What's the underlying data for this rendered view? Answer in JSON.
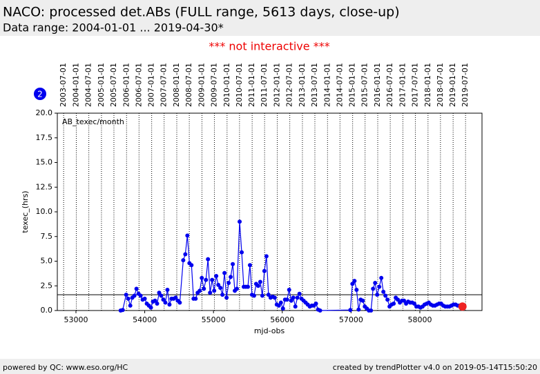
{
  "chart_data": {
    "type": "line",
    "title": "NACO: processed det.ABs (FULL range, 5613 days, close-up)",
    "subtitle": "Data range: 2004-01-01 ... 2019-04-30*",
    "notice": "*** not interactive ***",
    "badge": "2",
    "series_label": "AB_texec/month",
    "x_label": "mjd-obs",
    "y_label": "texec_(hrs)",
    "footer_left": "powered by QC: www.eso.org/HC",
    "footer_right": "created by trendPlotter v4.0 on 2019-05-14T15:50:20",
    "color": "#0000ee",
    "xlim": [
      52729,
      58904
    ],
    "ylim": [
      0,
      20
    ],
    "xticks": [
      53000,
      54000,
      55000,
      56000,
      57000,
      58000
    ],
    "yticks": [
      {
        "value": 0,
        "label": "0.0"
      },
      {
        "value": 2.5,
        "label": "2.5"
      },
      {
        "value": 5,
        "label": "5.0"
      },
      {
        "value": 7.5,
        "label": "7.5"
      },
      {
        "value": 10,
        "label": "10.0"
      },
      {
        "value": 12.5,
        "label": "12.5"
      },
      {
        "value": 15,
        "label": "15.0"
      },
      {
        "value": 17.5,
        "label": "17.5"
      },
      {
        "value": 20,
        "label": "20.0"
      }
    ],
    "top_ticks": [
      {
        "value": 52821,
        "label": "2003-07-01"
      },
      {
        "value": 53005,
        "label": "2004-01-01"
      },
      {
        "value": 53187,
        "label": "2004-07-01"
      },
      {
        "value": 53371,
        "label": "2005-01-01"
      },
      {
        "value": 53552,
        "label": "2005-07-01"
      },
      {
        "value": 53736,
        "label": "2006-01-01"
      },
      {
        "value": 53917,
        "label": "2006-07-01"
      },
      {
        "value": 54101,
        "label": "2007-01-01"
      },
      {
        "value": 54282,
        "label": "2007-07-01"
      },
      {
        "value": 54466,
        "label": "2008-01-01"
      },
      {
        "value": 54648,
        "label": "2008-07-01"
      },
      {
        "value": 54832,
        "label": "2009-01-01"
      },
      {
        "value": 55013,
        "label": "2009-07-01"
      },
      {
        "value": 55197,
        "label": "2010-01-01"
      },
      {
        "value": 55378,
        "label": "2010-07-01"
      },
      {
        "value": 55562,
        "label": "2011-01-01"
      },
      {
        "value": 55743,
        "label": "2011-07-01"
      },
      {
        "value": 55927,
        "label": "2012-01-01"
      },
      {
        "value": 56109,
        "label": "2012-07-01"
      },
      {
        "value": 56293,
        "label": "2013-01-01"
      },
      {
        "value": 56474,
        "label": "2013-07-01"
      },
      {
        "value": 56658,
        "label": "2014-01-01"
      },
      {
        "value": 56839,
        "label": "2014-07-01"
      },
      {
        "value": 57023,
        "label": "2015-01-01"
      },
      {
        "value": 57204,
        "label": "2015-07-01"
      },
      {
        "value": 57388,
        "label": "2016-01-01"
      },
      {
        "value": 57570,
        "label": "2016-07-01"
      },
      {
        "value": 57754,
        "label": "2017-01-01"
      },
      {
        "value": 57935,
        "label": "2017-07-01"
      },
      {
        "value": 58119,
        "label": "2018-01-01"
      },
      {
        "value": 58300,
        "label": "2018-07-01"
      },
      {
        "value": 58484,
        "label": "2019-01-01"
      },
      {
        "value": 58665,
        "label": "2019-07-01"
      }
    ],
    "hline": 1.6,
    "x": [
      53650,
      53680,
      53730,
      53760,
      53790,
      53820,
      53850,
      53880,
      53910,
      53940,
      53970,
      54000,
      54030,
      54060,
      54090,
      54120,
      54150,
      54180,
      54210,
      54240,
      54270,
      54300,
      54330,
      54360,
      54390,
      54420,
      54450,
      54480,
      54510,
      54560,
      54590,
      54620,
      54650,
      54680,
      54710,
      54740,
      54770,
      54800,
      54830,
      54860,
      54890,
      54920,
      54950,
      54980,
      55010,
      55040,
      55070,
      55100,
      55130,
      55160,
      55190,
      55220,
      55250,
      55280,
      55310,
      55340,
      55380,
      55410,
      55440,
      55470,
      55500,
      55530,
      55560,
      55590,
      55620,
      55650,
      55680,
      55710,
      55740,
      55770,
      55800,
      55830,
      55860,
      55890,
      55920,
      55950,
      55980,
      56010,
      56040,
      56070,
      56100,
      56130,
      56160,
      56190,
      56220,
      56250,
      56280,
      56310,
      56340,
      56370,
      56400,
      56430,
      56460,
      56490,
      56520,
      56550,
      56990,
      57020,
      57050,
      57080,
      57110,
      57140,
      57170,
      57200,
      57230,
      57260,
      57290,
      57320,
      57350,
      57380,
      57410,
      57440,
      57470,
      57500,
      57530,
      57560,
      57590,
      57620,
      57650,
      57680,
      57710,
      57740,
      57770,
      57800,
      57830,
      57860,
      57890,
      57920,
      57950,
      57980,
      58010,
      58040,
      58070,
      58100,
      58130,
      58160,
      58190,
      58220,
      58250,
      58280,
      58310,
      58340,
      58370,
      58400,
      58430,
      58460,
      58490,
      58520,
      58550,
      58580,
      58610,
      58640
    ],
    "values": [
      0,
      0.05,
      1.6,
      1.2,
      0.5,
      1.3,
      1.5,
      2.2,
      1.7,
      1.5,
      1.1,
      1.2,
      0.7,
      0.5,
      0.3,
      0.9,
      1.0,
      0.7,
      1.8,
      1.5,
      1.1,
      0.8,
      2.1,
      0.6,
      1.2,
      1.2,
      1.3,
      1.0,
      0.8,
      5.1,
      5.7,
      7.6,
      4.8,
      4.6,
      1.2,
      1.2,
      1.8,
      2.0,
      3.3,
      2.2,
      3.1,
      5.2,
      1.8,
      3.1,
      2.0,
      3.5,
      2.6,
      2.3,
      1.6,
      3.8,
      1.3,
      2.8,
      3.4,
      4.7,
      2.0,
      2.2,
      9.0,
      5.9,
      2.4,
      2.4,
      2.4,
      4.6,
      1.6,
      1.5,
      2.7,
      2.5,
      2.9,
      1.5,
      4.0,
      5.5,
      1.6,
      1.3,
      1.4,
      1.3,
      0.6,
      0.5,
      0.8,
      0.2,
      1.1,
      1.1,
      2.1,
      1.0,
      1.3,
      0.4,
      1.3,
      1.7,
      1.2,
      1.0,
      0.8,
      0.6,
      0.4,
      0.5,
      0.5,
      0.7,
      0.1,
      0,
      0.05,
      2.7,
      3.0,
      2.1,
      0.1,
      1.1,
      1.0,
      0.4,
      0.2,
      0,
      0,
      2.2,
      2.8,
      1.6,
      2.4,
      3.3,
      1.9,
      1.5,
      1.1,
      0.4,
      0.6,
      0.7,
      1.3,
      1.1,
      0.8,
      1.0,
      1.0,
      0.7,
      0.9,
      0.8,
      0.8,
      0.7,
      0.4,
      0.4,
      0.3,
      0.4,
      0.6,
      0.7,
      0.8,
      0.6,
      0.5,
      0.5,
      0.6,
      0.7,
      0.7,
      0.5,
      0.4,
      0.4,
      0.4,
      0.5,
      0.6,
      0.6,
      0.5,
      0.5,
      0.4,
      0.4
    ],
    "last_point": {
      "x": 58620,
      "value": 0.4,
      "color": "#ee2222"
    }
  }
}
